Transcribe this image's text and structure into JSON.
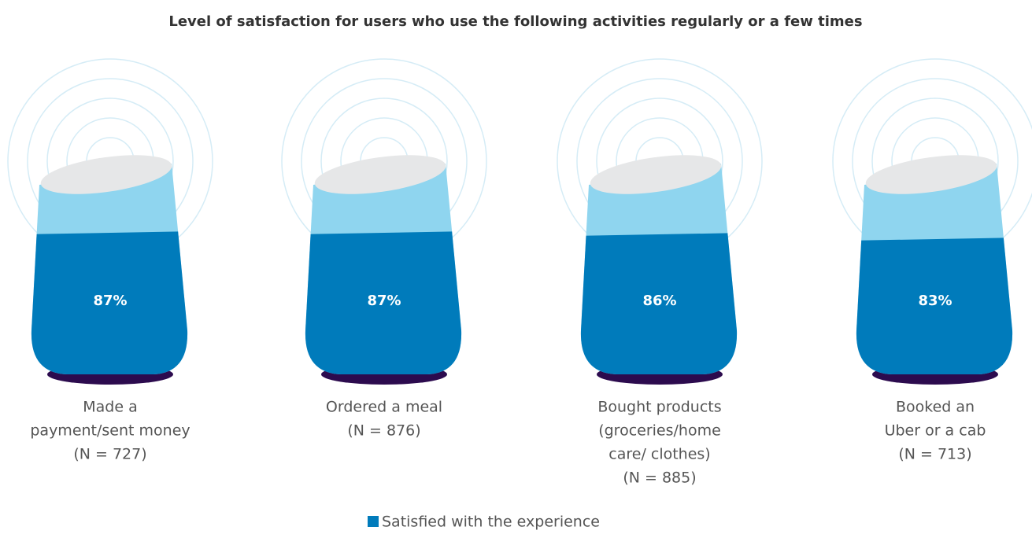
{
  "chart_data": {
    "type": "bar",
    "title": "Level of satisfaction for users who use the following activities regularly or a few times",
    "categories": [
      [
        "Made a",
        "payment/sent money",
        "(N = 727)"
      ],
      [
        "Ordered a meal",
        "(N = 876)"
      ],
      [
        "Bought products",
        "(groceries/home",
        "care/ clothes)",
        "(N = 885)"
      ],
      [
        "Booked an",
        "Uber or a cab",
        "(N = 713)"
      ]
    ],
    "series": [
      {
        "name": "Satisfied with the experience",
        "color": "#007bbb",
        "values": [
          87,
          87,
          86,
          83
        ],
        "value_labels": [
          "87%",
          "87%",
          "86%",
          "83%"
        ]
      }
    ],
    "ylim": [
      0,
      100
    ]
  }
}
